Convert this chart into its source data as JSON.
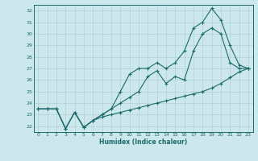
{
  "xlabel": "Humidex (Indice chaleur)",
  "bg_color": "#cde8ec",
  "grid_color": "#b0cfd4",
  "line_color": "#1a6b6b",
  "xlim": [
    -0.5,
    23.5
  ],
  "ylim": [
    21.5,
    32.5
  ],
  "xticks": [
    0,
    1,
    2,
    3,
    4,
    5,
    6,
    7,
    8,
    9,
    10,
    11,
    12,
    13,
    14,
    15,
    16,
    17,
    18,
    19,
    20,
    21,
    22,
    23
  ],
  "yticks": [
    22,
    23,
    24,
    25,
    26,
    27,
    28,
    29,
    30,
    31,
    32
  ],
  "series1": [
    23.5,
    23.5,
    23.5,
    21.8,
    23.2,
    21.9,
    22.5,
    22.8,
    23.0,
    23.2,
    23.4,
    23.6,
    23.8,
    24.0,
    24.2,
    24.4,
    24.6,
    24.8,
    25.0,
    25.3,
    25.7,
    26.2,
    26.7,
    27.0
  ],
  "series2": [
    23.5,
    23.5,
    23.5,
    21.8,
    23.2,
    21.9,
    22.5,
    23.0,
    23.5,
    24.0,
    24.5,
    25.0,
    26.3,
    26.8,
    25.7,
    26.3,
    26.0,
    28.5,
    30.0,
    30.5,
    30.0,
    27.5,
    27.0,
    27.0
  ],
  "series3": [
    23.5,
    23.5,
    23.5,
    21.8,
    23.2,
    21.9,
    22.5,
    23.0,
    23.5,
    25.0,
    26.5,
    27.0,
    27.0,
    27.5,
    27.0,
    27.5,
    28.5,
    30.5,
    31.0,
    32.2,
    31.2,
    29.0,
    27.3,
    27.0
  ]
}
